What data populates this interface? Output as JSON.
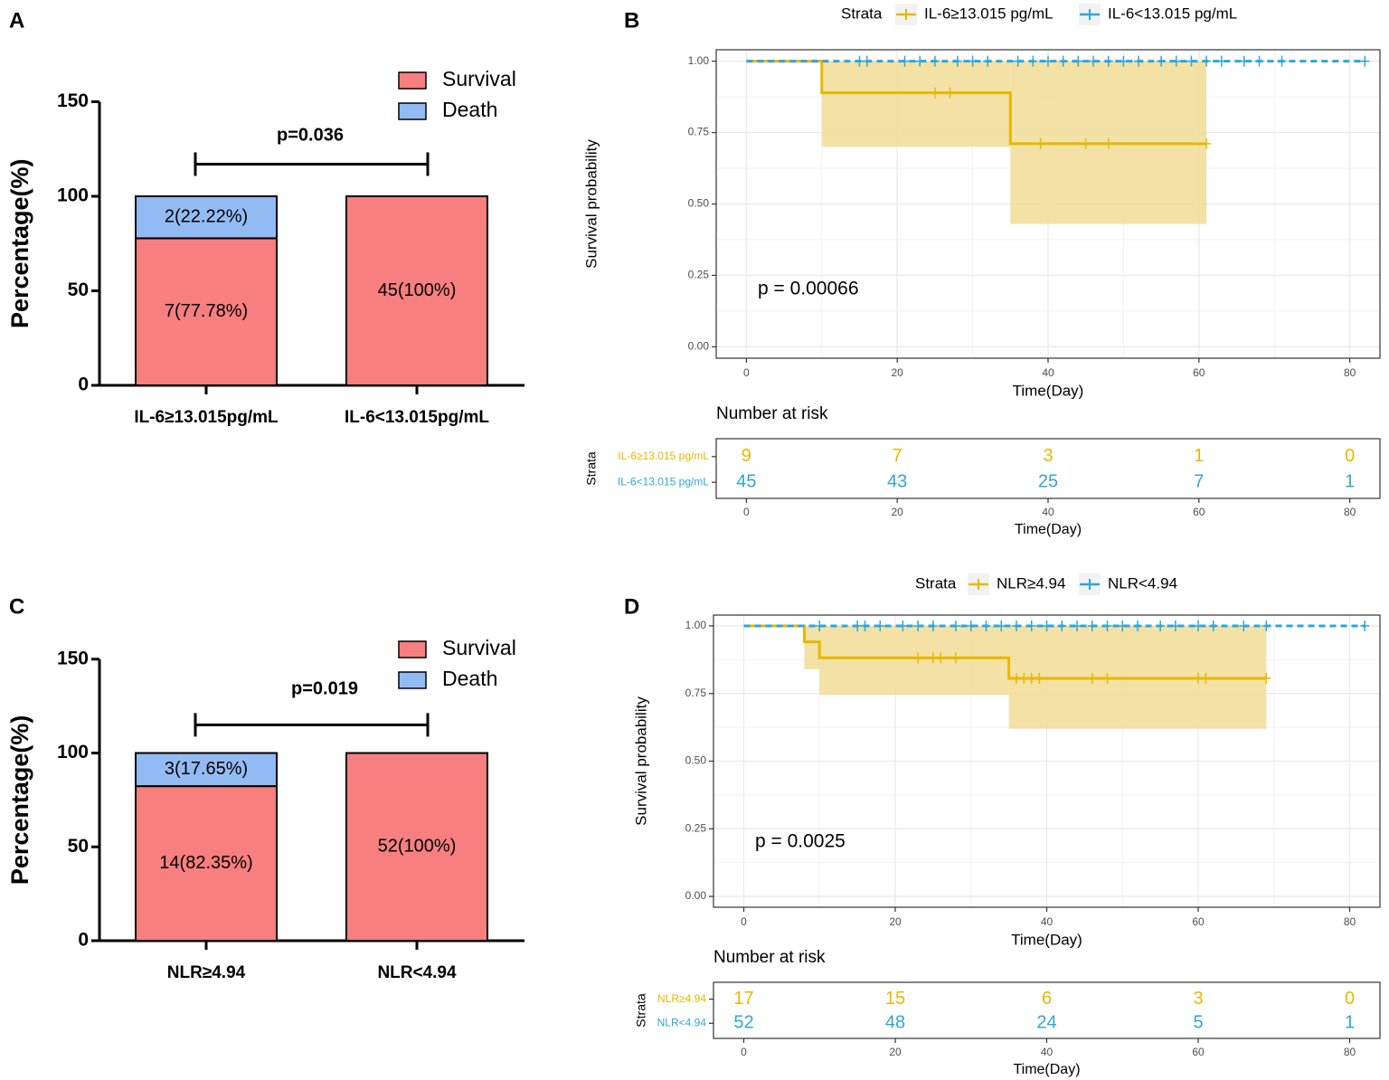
{
  "panel_letters": [
    "A",
    "B",
    "C",
    "D"
  ],
  "colors": {
    "survival": "#F77F7F",
    "death": "#93BBF3",
    "high": "#E6B800",
    "low": "#2EA6DB",
    "band": "#F1DC95",
    "grid": "#E8E8E8",
    "frame": "#333333"
  },
  "chart_data": [
    {
      "panel": "A",
      "type": "bar",
      "stacked": true,
      "ylabel": "Percentage(%)",
      "ylim": [
        0,
        150
      ],
      "yticks": [
        "0",
        "50",
        "100",
        "150"
      ],
      "categories": [
        "IL-6≥13.015pg/mL",
        "IL-6<13.015pg/mL"
      ],
      "legend": [
        "Survival",
        "Death"
      ],
      "series": [
        {
          "name": "Survival",
          "values": [
            77.78,
            100
          ],
          "labels": [
            "7(77.78%)",
            "45(100%)"
          ]
        },
        {
          "name": "Death",
          "values": [
            22.22,
            0
          ],
          "labels": [
            "2(22.22%)",
            ""
          ]
        }
      ],
      "annotation": "p=0.036",
      "bracket_y": 117
    },
    {
      "panel": "B",
      "type": "line",
      "subtype": "kaplan-meier",
      "xlabel": "Time(Day)",
      "ylabel": "Survival probability",
      "xlim": [
        -4,
        84
      ],
      "ylim": [
        -0.04,
        1.04
      ],
      "xticks": [
        "0",
        "20",
        "40",
        "60",
        "80"
      ],
      "yticks": [
        "0.00",
        "0.25",
        "0.50",
        "0.75",
        "1.00"
      ],
      "legend_title": "Strata",
      "pvalue": "p = 0.00066",
      "series": [
        {
          "name": "IL-6≥13.015 pg/mL",
          "color_key": "high",
          "dashed": false,
          "steps": [
            [
              0,
              1.0
            ],
            [
              10,
              0.889
            ],
            [
              35,
              0.711
            ],
            [
              61,
              0.711
            ]
          ],
          "ci": [
            [
              0,
              1.0,
              1.0
            ],
            [
              10,
              0.7,
              1.0
            ],
            [
              35,
              0.43,
              1.0
            ],
            [
              61,
              0.43,
              1.0
            ]
          ],
          "censor": [
            [
              25,
              0.889
            ],
            [
              27,
              0.889
            ],
            [
              39,
              0.711
            ],
            [
              45,
              0.711
            ],
            [
              48,
              0.711
            ],
            [
              61,
              0.711
            ]
          ]
        },
        {
          "name": "IL-6<13.015 pg/mL",
          "color_key": "low",
          "dashed": true,
          "steps": [
            [
              0,
              1.0
            ],
            [
              82,
              1.0
            ]
          ],
          "ci": [],
          "censor": [
            [
              15,
              1
            ],
            [
              16,
              1
            ],
            [
              21,
              1
            ],
            [
              23,
              1
            ],
            [
              25,
              1
            ],
            [
              28,
              1
            ],
            [
              30,
              1
            ],
            [
              32,
              1
            ],
            [
              36,
              1
            ],
            [
              38,
              1
            ],
            [
              40,
              1
            ],
            [
              42,
              1
            ],
            [
              44,
              1
            ],
            [
              46,
              1
            ],
            [
              48,
              1
            ],
            [
              50,
              1
            ],
            [
              52,
              1
            ],
            [
              55,
              1
            ],
            [
              57,
              1
            ],
            [
              59,
              1
            ],
            [
              61,
              1
            ],
            [
              63,
              1
            ],
            [
              66,
              1
            ],
            [
              68,
              1
            ],
            [
              71,
              1
            ],
            [
              82,
              1
            ]
          ]
        }
      ],
      "risk_table": {
        "title": "Number at risk",
        "ylabel": "Strata",
        "xlabel": "Time(Day)",
        "times": [
          0,
          20,
          40,
          60,
          80
        ],
        "rows": [
          {
            "label": "IL-6≥13.015 pg/mL",
            "color_key": "high",
            "counts": [
              "9",
              "7",
              "3",
              "1",
              "0"
            ]
          },
          {
            "label": "IL-6<13.015 pg/mL",
            "color_key": "low",
            "counts": [
              "45",
              "43",
              "25",
              "7",
              "1"
            ]
          }
        ]
      }
    },
    {
      "panel": "C",
      "type": "bar",
      "stacked": true,
      "ylabel": "Percentage(%)",
      "ylim": [
        0,
        150
      ],
      "yticks": [
        "0",
        "50",
        "100",
        "150"
      ],
      "categories": [
        "NLR≥4.94",
        "NLR<4.94"
      ],
      "legend": [
        "Survival",
        "Death"
      ],
      "series": [
        {
          "name": "Survival",
          "values": [
            82.35,
            100
          ],
          "labels": [
            "14(82.35%)",
            "52(100%)"
          ]
        },
        {
          "name": "Death",
          "values": [
            17.65,
            0
          ],
          "labels": [
            "3(17.65%)",
            ""
          ]
        }
      ],
      "annotation": "p=0.019",
      "bracket_y": 115
    },
    {
      "panel": "D",
      "type": "line",
      "subtype": "kaplan-meier",
      "xlabel": "Time(Day)",
      "ylabel": "Survival probability",
      "xlim": [
        -4,
        84
      ],
      "ylim": [
        -0.04,
        1.04
      ],
      "xticks": [
        "0",
        "20",
        "40",
        "60",
        "80"
      ],
      "yticks": [
        "0.00",
        "0.25",
        "0.50",
        "0.75",
        "1.00"
      ],
      "legend_title": "Strata",
      "pvalue": "p = 0.0025",
      "series": [
        {
          "name": "NLR≥4.94",
          "color_key": "high",
          "dashed": false,
          "steps": [
            [
              0,
              1.0
            ],
            [
              8,
              0.941
            ],
            [
              10,
              0.882
            ],
            [
              35,
              0.806
            ],
            [
              69,
              0.806
            ]
          ],
          "ci": [
            [
              0,
              1.0,
              1.0
            ],
            [
              8,
              0.84,
              1.0
            ],
            [
              10,
              0.745,
              1.0
            ],
            [
              35,
              0.62,
              1.0
            ],
            [
              69,
              0.62,
              1.0
            ]
          ],
          "censor": [
            [
              23,
              0.882
            ],
            [
              25,
              0.882
            ],
            [
              26,
              0.882
            ],
            [
              28,
              0.882
            ],
            [
              36,
              0.806
            ],
            [
              37,
              0.806
            ],
            [
              38,
              0.806
            ],
            [
              39,
              0.806
            ],
            [
              46,
              0.806
            ],
            [
              48,
              0.806
            ],
            [
              60,
              0.806
            ],
            [
              61,
              0.806
            ],
            [
              69,
              0.806
            ]
          ]
        },
        {
          "name": "NLR<4.94",
          "color_key": "low",
          "dashed": true,
          "steps": [
            [
              0,
              1.0
            ],
            [
              82,
              1.0
            ]
          ],
          "ci": [],
          "censor": [
            [
              10,
              1
            ],
            [
              15,
              1
            ],
            [
              16,
              1
            ],
            [
              18,
              1
            ],
            [
              21,
              1
            ],
            [
              23,
              1
            ],
            [
              25,
              1
            ],
            [
              28,
              1
            ],
            [
              30,
              1
            ],
            [
              32,
              1
            ],
            [
              34,
              1
            ],
            [
              36,
              1
            ],
            [
              38,
              1
            ],
            [
              40,
              1
            ],
            [
              42,
              1
            ],
            [
              44,
              1
            ],
            [
              46,
              1
            ],
            [
              48,
              1
            ],
            [
              50,
              1
            ],
            [
              52,
              1
            ],
            [
              55,
              1
            ],
            [
              57,
              1
            ],
            [
              60,
              1
            ],
            [
              62,
              1
            ],
            [
              66,
              1
            ],
            [
              69,
              1
            ],
            [
              82,
              1
            ]
          ]
        }
      ],
      "risk_table": {
        "title": "Number at risk",
        "ylabel": "Strata",
        "xlabel": "Time(Day)",
        "times": [
          0,
          20,
          40,
          60,
          80
        ],
        "rows": [
          {
            "label": "NLR≥4.94",
            "color_key": "high",
            "counts": [
              "17",
              "15",
              "6",
              "3",
              "0"
            ]
          },
          {
            "label": "NLR<4.94",
            "color_key": "low",
            "counts": [
              "52",
              "48",
              "24",
              "5",
              "1"
            ]
          }
        ]
      }
    }
  ]
}
